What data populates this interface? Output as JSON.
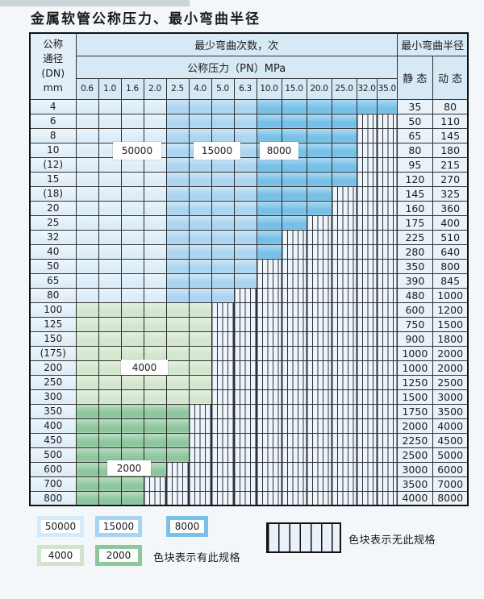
{
  "title": "金属软管公称压力、最小弯曲半径",
  "table": {
    "header": {
      "dn_lines": [
        "公称",
        "通径",
        "(DN)",
        "mm"
      ],
      "bend_cycles": "最少弯曲次数，次",
      "pressure": "公称压力（PN）MPa",
      "radius": "最小弯曲半径",
      "static": "静 态",
      "dynamic": "动 态",
      "pressure_cols": [
        "0.6",
        "1.0",
        "1.6",
        "2.0",
        "2.5",
        "4.0",
        "5.0",
        "6.3",
        "10.0",
        "15.0",
        "20.0",
        "25.0",
        "32.0",
        "35.0"
      ]
    },
    "zone_map": {
      "blue_a_last_col": 3,
      "blue_b_last_col": 7
    },
    "rows": [
      {
        "dn": "4",
        "last_col": 13,
        "zone": "blue",
        "static": "35",
        "dynamic": "80"
      },
      {
        "dn": "6",
        "last_col": 11,
        "zone": "blue",
        "static": "50",
        "dynamic": "110"
      },
      {
        "dn": "8",
        "last_col": 11,
        "zone": "blue",
        "static": "65",
        "dynamic": "145"
      },
      {
        "dn": "10",
        "last_col": 11,
        "zone": "blue",
        "static": "80",
        "dynamic": "180"
      },
      {
        "dn": "(12)",
        "last_col": 11,
        "zone": "blue",
        "static": "95",
        "dynamic": "215"
      },
      {
        "dn": "15",
        "last_col": 11,
        "zone": "blue",
        "static": "120",
        "dynamic": "270"
      },
      {
        "dn": "(18)",
        "last_col": 10,
        "zone": "blue",
        "static": "145",
        "dynamic": "325"
      },
      {
        "dn": "20",
        "last_col": 10,
        "zone": "blue",
        "static": "160",
        "dynamic": "360"
      },
      {
        "dn": "25",
        "last_col": 9,
        "zone": "blue",
        "static": "175",
        "dynamic": "400"
      },
      {
        "dn": "32",
        "last_col": 8,
        "zone": "blue",
        "static": "225",
        "dynamic": "510"
      },
      {
        "dn": "40",
        "last_col": 8,
        "zone": "blue",
        "static": "280",
        "dynamic": "640"
      },
      {
        "dn": "50",
        "last_col": 7,
        "zone": "blue",
        "static": "350",
        "dynamic": "800"
      },
      {
        "dn": "65",
        "last_col": 7,
        "zone": "blue",
        "static": "390",
        "dynamic": "845"
      },
      {
        "dn": "80",
        "last_col": 6,
        "zone": "blue",
        "static": "480",
        "dynamic": "1000"
      },
      {
        "dn": "100",
        "last_col": 5,
        "zone": "g4",
        "static": "600",
        "dynamic": "1200"
      },
      {
        "dn": "125",
        "last_col": 5,
        "zone": "g4",
        "static": "750",
        "dynamic": "1500"
      },
      {
        "dn": "150",
        "last_col": 5,
        "zone": "g4",
        "static": "900",
        "dynamic": "1800"
      },
      {
        "dn": "(175)",
        "last_col": 5,
        "zone": "g4",
        "static": "1000",
        "dynamic": "2000"
      },
      {
        "dn": "200",
        "last_col": 5,
        "zone": "g4",
        "static": "1000",
        "dynamic": "2000"
      },
      {
        "dn": "250",
        "last_col": 5,
        "zone": "g4",
        "static": "1250",
        "dynamic": "2500"
      },
      {
        "dn": "300",
        "last_col": 5,
        "zone": "g4",
        "static": "1500",
        "dynamic": "3000"
      },
      {
        "dn": "350",
        "last_col": 4,
        "zone": "g2",
        "static": "1750",
        "dynamic": "3500"
      },
      {
        "dn": "400",
        "last_col": 4,
        "zone": "g2",
        "static": "2000",
        "dynamic": "4000"
      },
      {
        "dn": "450",
        "last_col": 4,
        "zone": "g2",
        "static": "2250",
        "dynamic": "4500"
      },
      {
        "dn": "500",
        "last_col": 4,
        "zone": "g2",
        "static": "2500",
        "dynamic": "5000"
      },
      {
        "dn": "600",
        "last_col": 3,
        "zone": "g2",
        "static": "3000",
        "dynamic": "6000"
      },
      {
        "dn": "700",
        "last_col": 2,
        "zone": "g2",
        "static": "3500",
        "dynamic": "7000"
      },
      {
        "dn": "800",
        "last_col": 2,
        "zone": "g2",
        "static": "4000",
        "dynamic": "8000"
      }
    ]
  },
  "overlays": [
    {
      "text": "50000"
    },
    {
      "text": "15000"
    },
    {
      "text": "8000"
    },
    {
      "text": "4000"
    },
    {
      "text": "2000"
    }
  ],
  "legend": {
    "items": [
      {
        "label": "50000",
        "color": "#d4eaf8"
      },
      {
        "label": "15000",
        "color": "#a8d4ef"
      },
      {
        "label": "8000",
        "color": "#79c1e9"
      },
      {
        "label": "4000",
        "color": "#d0e5cb"
      },
      {
        "label": "2000",
        "color": "#8dc79c"
      }
    ],
    "has_spec_text": "色块表示有此规格",
    "no_spec_text": "色块表示无此规格"
  },
  "colors": {
    "zone_50000": "#dcedf9",
    "zone_15000": "#abd5f0",
    "zone_8000": "#77c0e8",
    "zone_4000": "#d3e6ce",
    "zone_2000": "#8ec79d",
    "hatch_bg": "#edf4fa",
    "header_bg": "#d8e9f6",
    "border": "#2e2e2e"
  }
}
